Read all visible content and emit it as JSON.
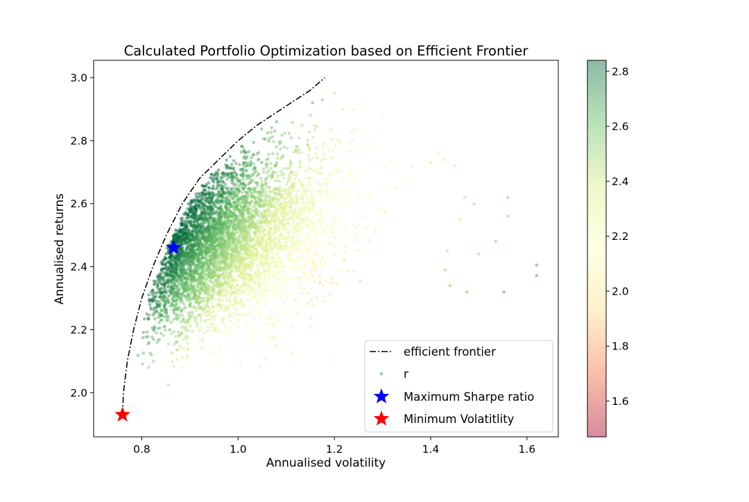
{
  "chart_data": {
    "type": "scatter",
    "title": "Calculated Portfolio Optimization based on Efficient Frontier",
    "xlabel": "Annualised volatility",
    "ylabel": "Annualised returns",
    "xlim": [
      0.7,
      1.665
    ],
    "ylim": [
      1.86,
      3.055
    ],
    "xticks": [
      "0.8",
      "1.0",
      "1.2",
      "1.4",
      "1.6"
    ],
    "yticks": [
      "2.0",
      "2.2",
      "2.4",
      "2.6",
      "2.8",
      "3.0"
    ],
    "grid": false,
    "colorbar": {
      "min": 1.47,
      "max": 2.84,
      "ticks": [
        "1.6",
        "1.8",
        "2.0",
        "2.2",
        "2.4",
        "2.6",
        "2.8"
      ],
      "colormap": [
        "#a50026",
        "#f46d43",
        "#fee08b",
        "#ffffbf",
        "#d9ef8b",
        "#66bd63",
        "#006837"
      ]
    },
    "legend_position": "lower-right",
    "legend": [
      {
        "label": "efficient frontier",
        "marker": "dash-dot-line",
        "color": "#000000"
      },
      {
        "label": "r",
        "marker": "dot",
        "color": "#9ecae1"
      },
      {
        "label": "Maximum Sharpe ratio",
        "marker": "star",
        "color": "#0000ff"
      },
      {
        "label": "Minimum Volatitlity",
        "marker": "star",
        "color": "#ff0000"
      }
    ],
    "efficient_frontier": {
      "volatility": [
        0.76,
        0.762,
        0.77,
        0.783,
        0.8,
        0.823,
        0.851,
        0.884,
        0.92,
        0.96,
        1.0,
        1.04,
        1.08,
        1.12,
        1.15,
        1.18
      ],
      "return": [
        1.93,
        2.0,
        2.1,
        2.2,
        2.3,
        2.4,
        2.5,
        2.6,
        2.68,
        2.74,
        2.8,
        2.85,
        2.89,
        2.93,
        2.96,
        3.0
      ]
    },
    "max_sharpe": {
      "volatility": 0.866,
      "return": 2.46
    },
    "min_volatility": {
      "volatility": 0.76,
      "return": 1.93
    },
    "portfolios_outliers": [
      {
        "x": 1.62,
        "y": 2.405,
        "c": 1.6
      },
      {
        "x": 1.62,
        "y": 2.372,
        "c": 1.6
      },
      {
        "x": 1.552,
        "y": 2.32,
        "c": 1.62
      },
      {
        "x": 1.475,
        "y": 2.32,
        "c": 1.68
      },
      {
        "x": 1.56,
        "y": 2.62,
        "c": 1.75
      },
      {
        "x": 1.56,
        "y": 2.56,
        "c": 1.78
      },
      {
        "x": 1.535,
        "y": 2.48,
        "c": 1.75
      },
      {
        "x": 1.5,
        "y": 2.44,
        "c": 1.8
      },
      {
        "x": 1.49,
        "y": 2.6,
        "c": 1.82
      },
      {
        "x": 1.47,
        "y": 2.62,
        "c": 1.85
      },
      {
        "x": 1.44,
        "y": 2.34,
        "c": 1.75
      },
      {
        "x": 1.43,
        "y": 2.39,
        "c": 1.78
      },
      {
        "x": 1.435,
        "y": 2.45,
        "c": 1.85
      },
      {
        "x": 1.46,
        "y": 2.55,
        "c": 1.85
      },
      {
        "x": 1.45,
        "y": 2.72,
        "c": 1.9
      },
      {
        "x": 1.43,
        "y": 2.74,
        "c": 1.92
      },
      {
        "x": 1.415,
        "y": 2.76,
        "c": 1.95
      },
      {
        "x": 1.4,
        "y": 2.73,
        "c": 1.92
      },
      {
        "x": 1.005,
        "y": 2.095,
        "c": 2.3
      },
      {
        "x": 1.195,
        "y": 2.105,
        "c": 2.2
      },
      {
        "x": 0.855,
        "y": 2.025,
        "c": 2.5
      },
      {
        "x": 0.82,
        "y": 2.12,
        "c": 2.6
      },
      {
        "x": 1.2,
        "y": 2.95,
        "c": 2.45
      },
      {
        "x": 1.175,
        "y": 2.93,
        "c": 2.6
      },
      {
        "x": 1.155,
        "y": 2.92,
        "c": 2.7
      },
      {
        "x": 1.08,
        "y": 2.86,
        "c": 2.7
      }
    ]
  }
}
